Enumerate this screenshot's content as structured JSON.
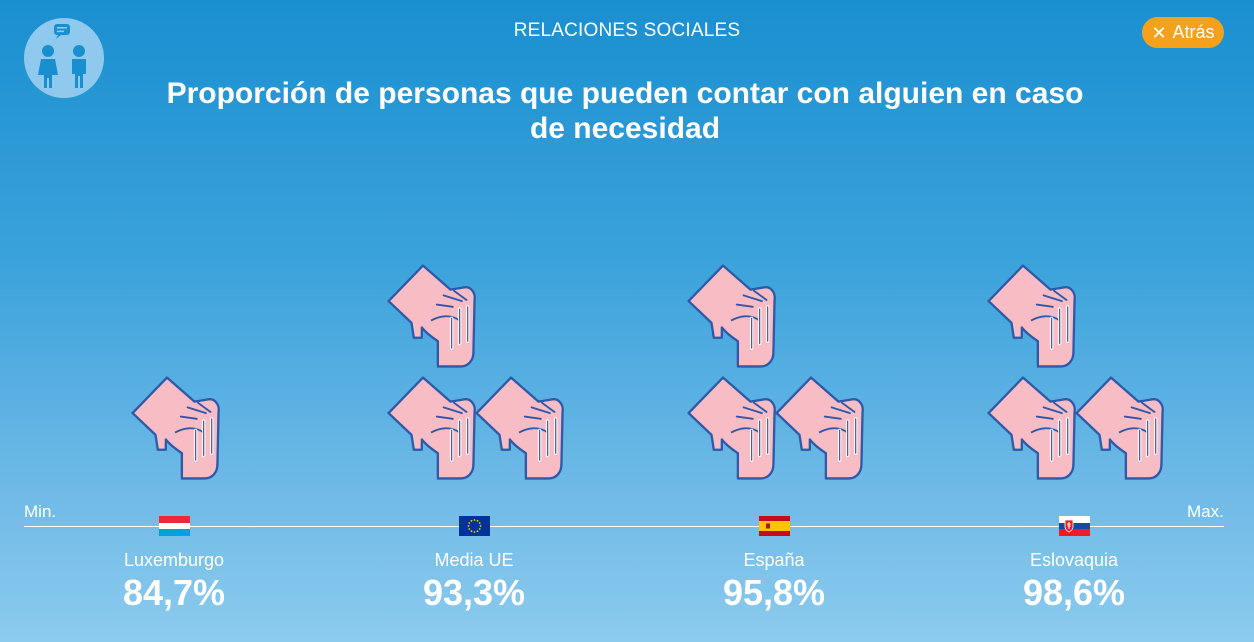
{
  "header": {
    "section_title": "RELACIONES SOCIALES",
    "back_label": "Atrás",
    "headline": "Proporción de personas que pueden contar con alguien en caso de necesidad"
  },
  "axis": {
    "min_label": "Min.",
    "max_label": "Max."
  },
  "colors": {
    "accent": "#f5a11c",
    "hand_fill": "#f7bcc4",
    "hand_stroke": "#2c59a8"
  },
  "items": [
    {
      "country": "Luxemburgo",
      "value": "84,7%",
      "hands": 1,
      "flag": "luxembourg-flag"
    },
    {
      "country": "Media UE",
      "value": "93,3%",
      "hands": 3,
      "flag": "eu-flag"
    },
    {
      "country": "España",
      "value": "95,8%",
      "hands": 3,
      "flag": "spain-flag"
    },
    {
      "country": "Eslovaquia",
      "value": "98,6%",
      "hands": 3,
      "flag": "slovakia-flag"
    }
  ]
}
